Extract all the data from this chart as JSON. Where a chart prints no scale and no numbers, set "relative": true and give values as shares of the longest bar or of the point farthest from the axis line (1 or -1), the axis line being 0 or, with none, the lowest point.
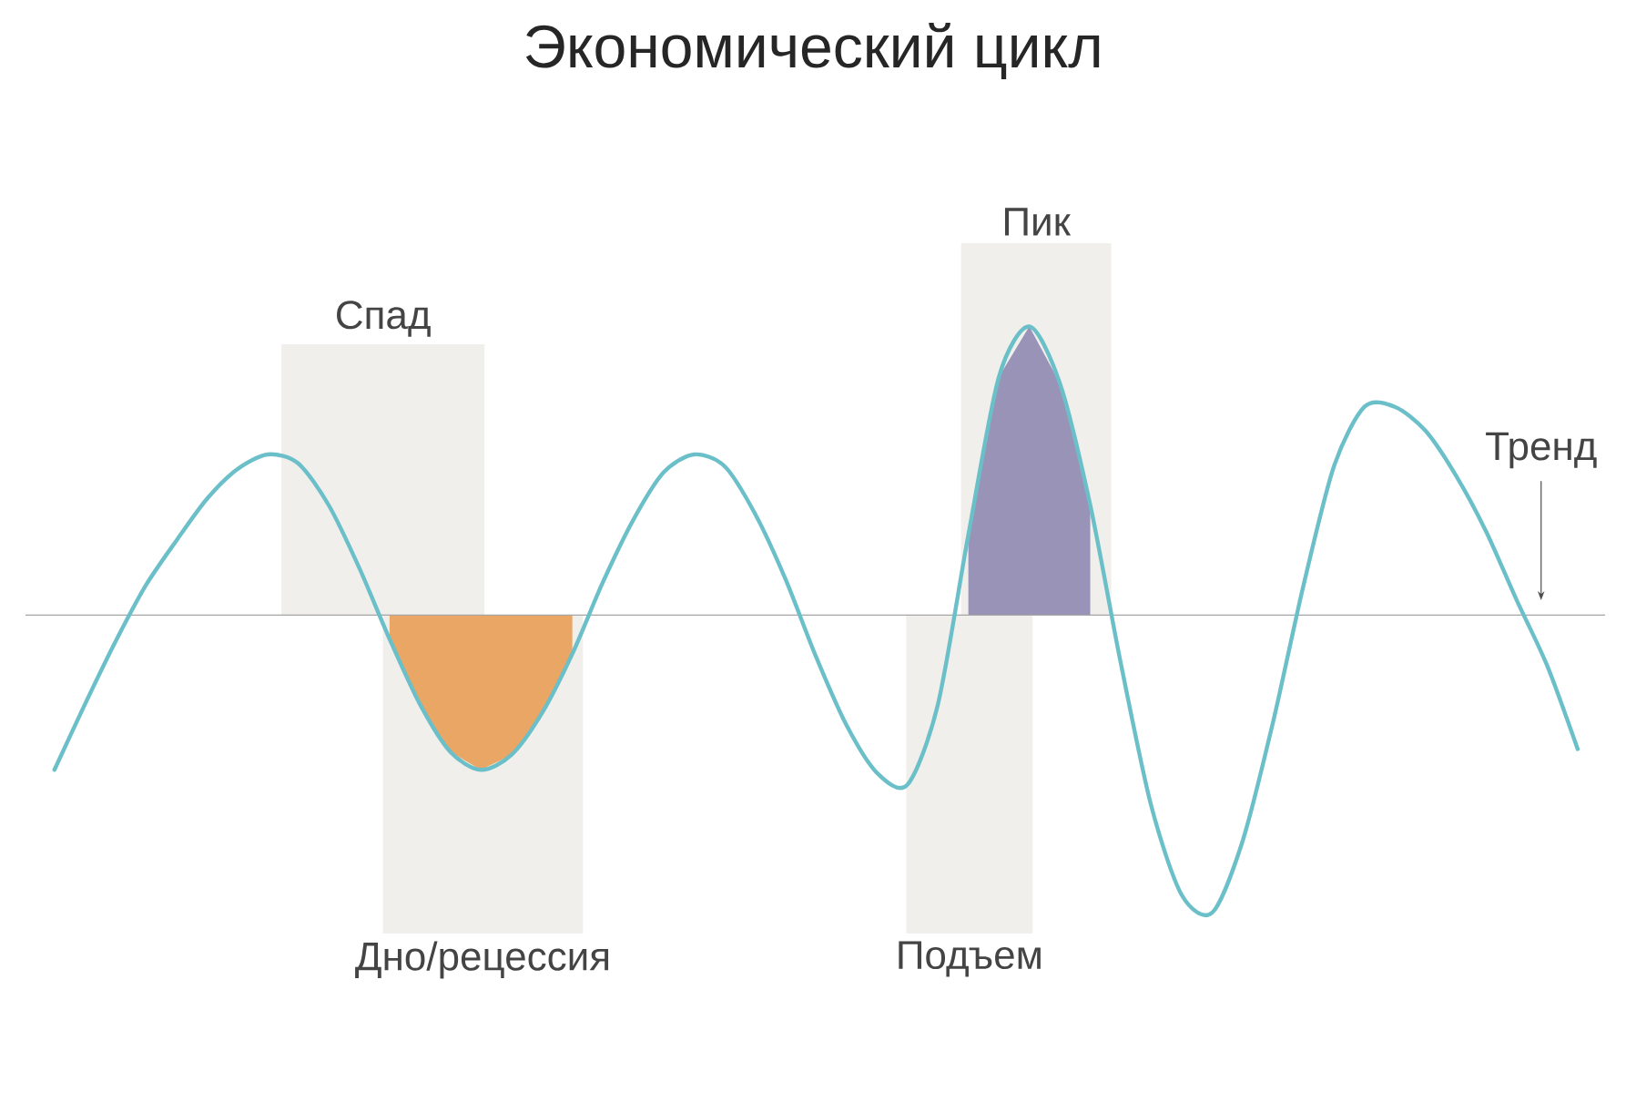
{
  "chart_data": {
    "type": "line",
    "title": "Экономический цикл",
    "relative": true,
    "annotations": [
      "Спад",
      "Дно/рецессия",
      "Пик",
      "Подъем",
      "Тренд"
    ],
    "categories": [
      null,
      null,
      null,
      null,
      null,
      null,
      null,
      null,
      null,
      null,
      null,
      null,
      null,
      null,
      null,
      null,
      null,
      null,
      null,
      null,
      null,
      null,
      null,
      null,
      null,
      null,
      null,
      null,
      null,
      null,
      null,
      null,
      null,
      null,
      null,
      null,
      null,
      null,
      null,
      null,
      null,
      null,
      null,
      null,
      null,
      null,
      null,
      null,
      null,
      null,
      null
    ],
    "series": [
      {
        "color": "#6bbfc8",
        "values": [
          -0.52,
          -0.3,
          -0.09,
          0.1,
          0.25,
          0.39,
          0.49,
          0.54,
          0.51,
          0.37,
          0.16,
          -0.08,
          -0.3,
          -0.46,
          -0.52,
          -0.47,
          -0.33,
          -0.13,
          0.11,
          0.32,
          0.48,
          0.54,
          0.5,
          0.34,
          0.12,
          -0.14,
          -0.37,
          -0.53,
          -0.57,
          -0.3,
          0.27,
          0.8,
          0.97,
          0.78,
          0.37,
          -0.16,
          -0.64,
          -0.94,
          -1.0,
          -0.76,
          -0.36,
          0.1,
          0.5,
          0.7,
          0.7,
          0.62,
          0.47,
          0.28,
          0.05,
          -0.17,
          -0.45
        ]
      },
      {
        "type": "area",
        "color": "#e9a665",
        "values": [
          null,
          null,
          null,
          null,
          null,
          null,
          null,
          null,
          null,
          null,
          null,
          -0.08,
          -0.3,
          -0.46,
          -0.52,
          -0.47,
          -0.33,
          -0.13,
          null,
          null,
          null,
          null,
          null,
          null,
          null,
          null,
          null,
          null,
          null,
          null,
          null,
          null,
          null,
          null,
          null,
          null,
          null,
          null,
          null,
          null,
          null,
          null,
          null,
          null,
          null,
          null,
          null,
          null,
          null,
          null,
          null
        ]
      },
      {
        "type": "area",
        "color": "#9a93b8",
        "values": [
          null,
          null,
          null,
          null,
          null,
          null,
          null,
          null,
          null,
          null,
          null,
          null,
          null,
          null,
          null,
          null,
          null,
          null,
          null,
          null,
          null,
          null,
          null,
          null,
          null,
          null,
          null,
          null,
          null,
          null,
          0.27,
          0.8,
          0.97,
          0.78,
          0.37,
          null,
          null,
          null,
          null,
          null,
          null,
          null,
          null,
          null,
          null,
          null,
          null,
          null,
          null,
          null,
          null
        ]
      }
    ],
    "ref_lines": [
      {
        "axis": "y",
        "value": 0,
        "color": "#a5a5a5"
      }
    ]
  }
}
